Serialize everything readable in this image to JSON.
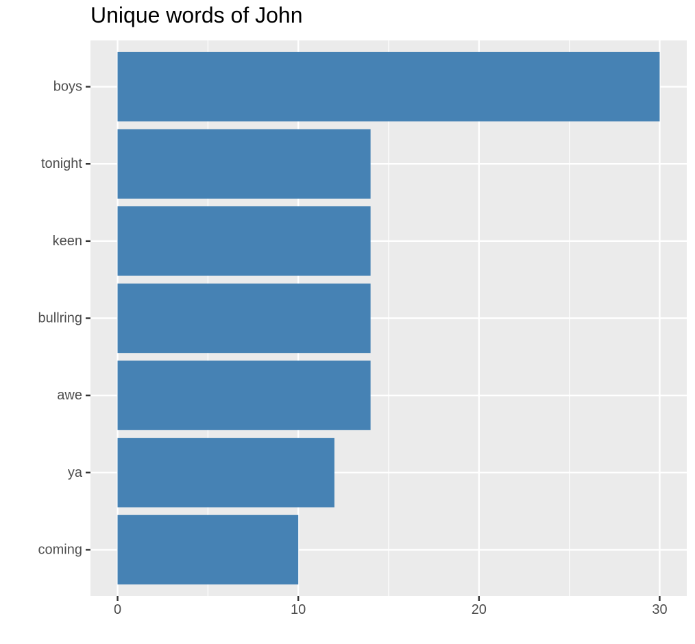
{
  "chart_data": {
    "type": "bar",
    "orientation": "horizontal",
    "title": "Unique words of John",
    "xlabel": "",
    "ylabel": "",
    "categories": [
      "boys",
      "tonight",
      "keen",
      "bullring",
      "awe",
      "ya",
      "coming"
    ],
    "values": [
      30,
      14,
      14,
      14,
      14,
      12,
      10
    ],
    "xlim": [
      -1.5,
      31.5
    ],
    "xticks": [
      0,
      10,
      20,
      30
    ],
    "grid": true,
    "legend": "none",
    "colors": {
      "bar": "#4682b4",
      "panel": "#ebebeb",
      "gridline": "#ffffff",
      "tick_text": "#4d4d4d",
      "tick_mark": "#333333"
    }
  }
}
